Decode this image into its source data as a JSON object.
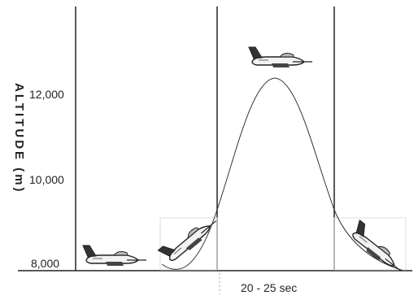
{
  "figure": {
    "y_axis_label": "ALTITUDE (m)",
    "y_ticks": [
      "12,000",
      "10,000",
      "8,000"
    ],
    "x_interval_label": "20 - 25 sec"
  },
  "colors": {
    "ink": "#222222",
    "background": "#ffffff",
    "curve": "#333333"
  },
  "icons": [
    "airplane-level-icon",
    "airplane-climbing-icon",
    "airplane-inverted-top-icon",
    "airplane-diving-icon"
  ]
}
